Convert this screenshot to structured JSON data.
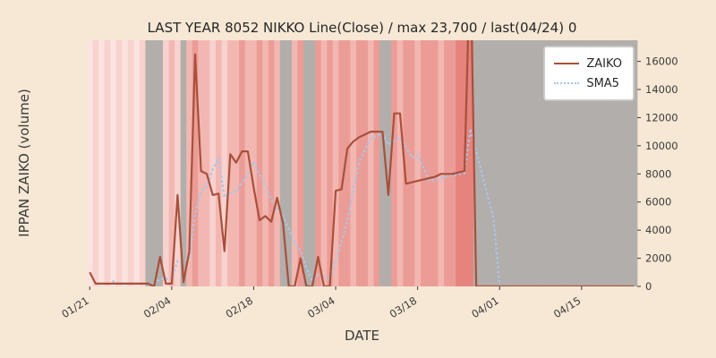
{
  "figure": {
    "title": "LAST YEAR 8052 NIKKO Line(Close) / max 23,700 / last(04/24) 0",
    "xlabel": "DATE",
    "ylabel": "IPPAN ZAIKO (volume)",
    "background_color": "#f7e8d5",
    "max_value_label": "23,700",
    "last_value_label": "last(04/24) 0"
  },
  "legend": {
    "entries": [
      {
        "label": "ZAIKO"
      },
      {
        "label": "SMA5"
      }
    ]
  },
  "chart_data": {
    "type": "line",
    "title": "LAST YEAR 8052 NIKKO Line(Close) / max 23,700 / last(04/24) 0",
    "xlabel": "DATE",
    "ylabel": "IPPAN ZAIKO (volume)",
    "ylim": [
      0,
      17500
    ],
    "y_ticks": [
      0,
      2000,
      4000,
      6000,
      8000,
      10000,
      12000,
      14000,
      16000
    ],
    "x_ticks": [
      "01/21",
      "02/04",
      "02/18",
      "03/04",
      "03/18",
      "04/01",
      "04/15"
    ],
    "grid": false,
    "legend_position": "upper-right",
    "dates": [
      "01/21",
      "01/22",
      "01/23",
      "01/24",
      "01/25",
      "01/26",
      "01/27",
      "01/28",
      "01/29",
      "01/30",
      "01/31",
      "02/01",
      "02/02",
      "02/03",
      "02/04",
      "02/05",
      "02/06",
      "02/07",
      "02/08",
      "02/09",
      "02/10",
      "02/11",
      "02/12",
      "02/13",
      "02/14",
      "02/15",
      "02/16",
      "02/17",
      "02/18",
      "02/19",
      "02/20",
      "02/21",
      "02/22",
      "02/23",
      "02/24",
      "02/25",
      "02/26",
      "02/27",
      "02/28",
      "03/01",
      "03/02",
      "03/03",
      "03/04",
      "03/05",
      "03/06",
      "03/07",
      "03/08",
      "03/09",
      "03/10",
      "03/11",
      "03/12",
      "03/13",
      "03/14",
      "03/15",
      "03/16",
      "03/17",
      "03/18",
      "03/19",
      "03/20",
      "03/21",
      "03/22",
      "03/23",
      "03/24",
      "03/25",
      "03/26",
      "03/27",
      "03/28",
      "03/29",
      "03/30",
      "03/31",
      "04/01",
      "04/02",
      "04/03",
      "04/04",
      "04/05",
      "04/06",
      "04/07",
      "04/08",
      "04/09",
      "04/10",
      "04/11",
      "04/12",
      "04/13",
      "04/14",
      "04/15",
      "04/16",
      "04/17",
      "04/18",
      "04/19",
      "04/20",
      "04/21",
      "04/22",
      "04/23",
      "04/24"
    ],
    "series": [
      {
        "name": "ZAIKO",
        "color": "#a8503a",
        "style": "solid",
        "values": [
          1000,
          200,
          200,
          200,
          200,
          200,
          200,
          200,
          200,
          200,
          200,
          0,
          2100,
          200,
          200,
          6500,
          300,
          2500,
          16500,
          8200,
          8000,
          6500,
          6600,
          2500,
          9400,
          8800,
          9600,
          9600,
          7000,
          4700,
          5000,
          4600,
          6300,
          4500,
          0,
          0,
          2000,
          0,
          0,
          2100,
          0,
          0,
          6800,
          6900,
          9800,
          10300,
          10600,
          10800,
          11000,
          11000,
          11000,
          6500,
          12300,
          12300,
          7300,
          7400,
          7500,
          7600,
          7700,
          7800,
          8000,
          8000,
          8000,
          8100,
          8200,
          23700,
          0,
          0,
          0,
          0,
          0,
          0,
          0,
          0,
          0,
          0,
          0,
          0,
          0,
          0,
          0,
          0,
          0,
          0,
          0,
          0,
          0,
          0,
          0,
          0,
          0,
          0,
          0,
          0
        ]
      },
      {
        "name": "SMA5",
        "color": "#a9c6e8",
        "style": "dotted",
        "derived_from": "ZAIKO",
        "window": 5
      }
    ],
    "background_bands": {
      "palette": {
        "a": "#fbe3e0",
        "b": "#f8d2cf",
        "c": "#f3b7b2",
        "d": "#ec9c96",
        "e": "#e5837d",
        "g": "#b2aeab"
      },
      "day_colors": "abababababgggbcbgcdccbcbccdccdcdcggcdggdcdcddcddcdggdcddcdddcddeeegggggggggggggggggggggggggggg"
    }
  }
}
